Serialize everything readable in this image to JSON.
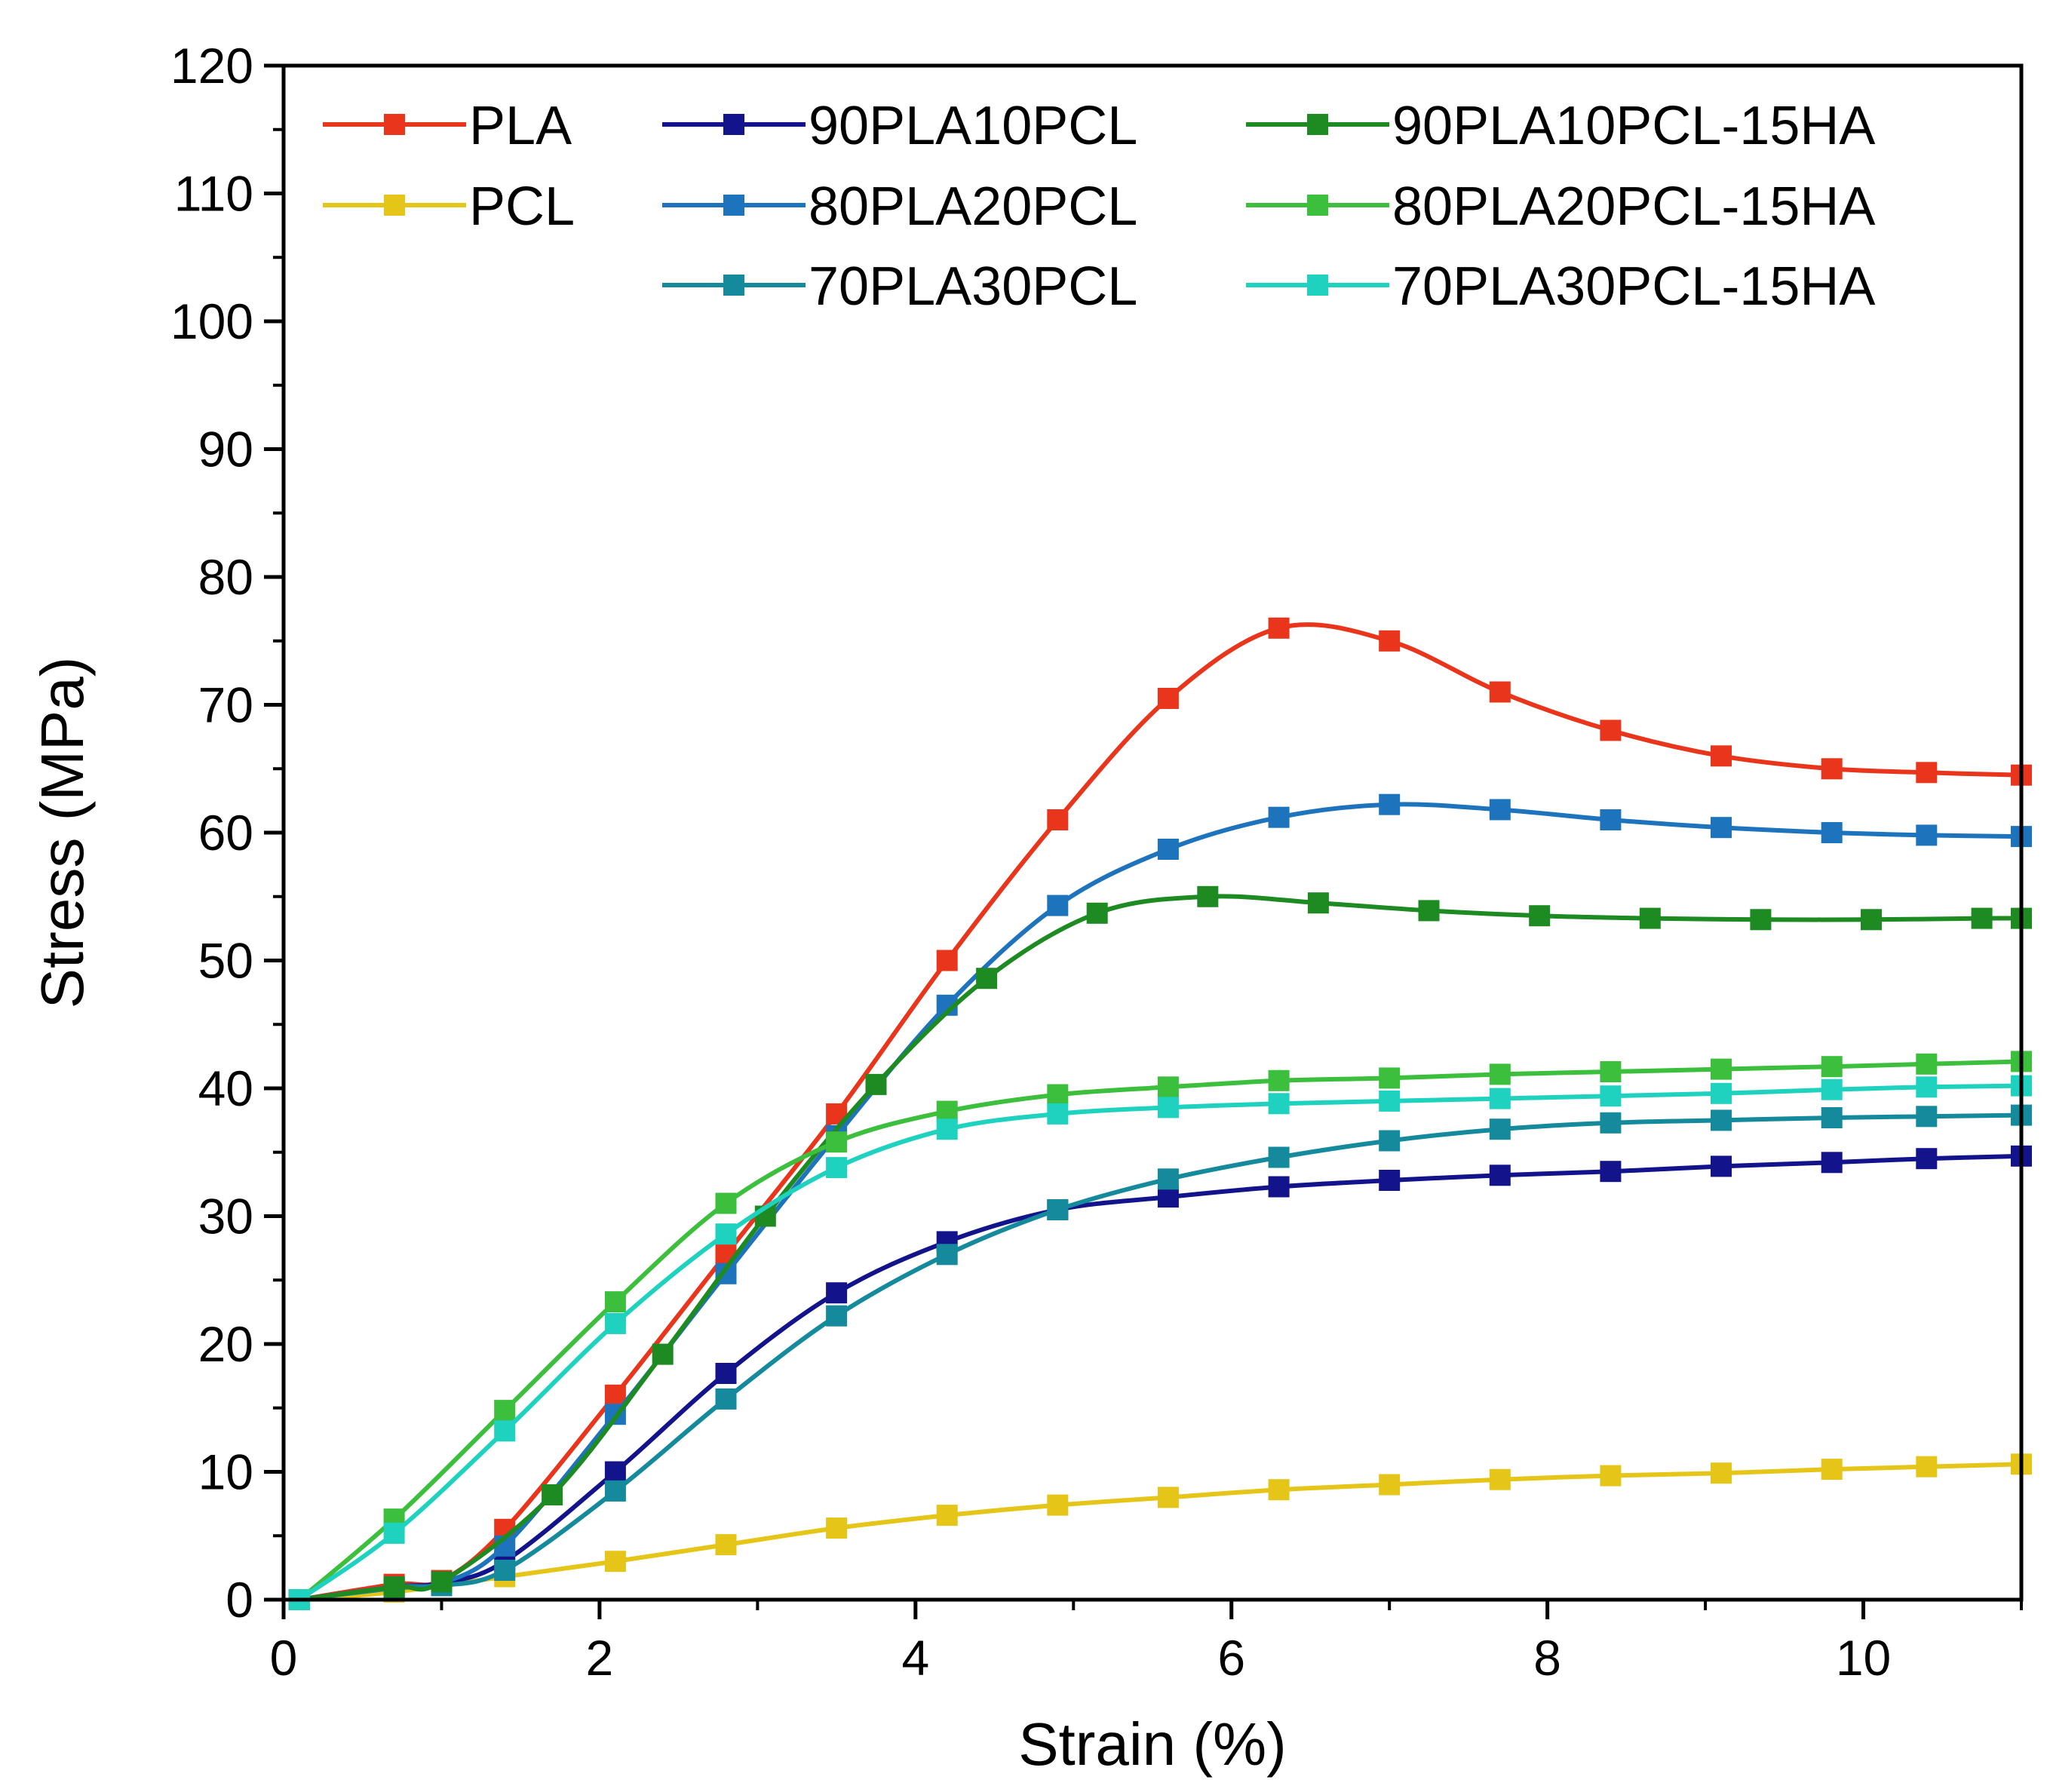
{
  "chart_data": {
    "type": "line",
    "title": "",
    "xlabel": "Strain (%)",
    "ylabel": "Stress (MPa)",
    "xlim": [
      0,
      11
    ],
    "ylim": [
      0,
      120
    ],
    "xticks": [
      0,
      2,
      4,
      6,
      8,
      10
    ],
    "yticks": [
      0,
      10,
      20,
      30,
      40,
      50,
      60,
      70,
      80,
      90,
      100,
      110,
      120
    ],
    "grid": false,
    "legend_position": "top-left",
    "series": [
      {
        "name": "PLA",
        "color": "#e8351b",
        "x": [
          0.1,
          0.7,
          1.0,
          1.4,
          2.1,
          2.8,
          3.5,
          4.2,
          4.9,
          5.6,
          6.3,
          7.0,
          7.7,
          8.4,
          9.1,
          9.8,
          10.4,
          11.0
        ],
        "y": [
          0,
          1.2,
          1.5,
          5.5,
          16,
          27,
          38,
          50,
          61,
          70.5,
          76,
          75,
          71,
          68,
          66,
          65,
          64.7,
          64.5
        ]
      },
      {
        "name": "PCL",
        "color": "#e6c519",
        "x": [
          0.1,
          0.7,
          1.4,
          2.1,
          2.8,
          3.5,
          4.2,
          4.9,
          5.6,
          6.3,
          7.0,
          7.7,
          8.4,
          9.1,
          9.8,
          10.4,
          11.0
        ],
        "y": [
          0,
          0.6,
          1.8,
          3.0,
          4.3,
          5.6,
          6.6,
          7.4,
          8.0,
          8.6,
          9.0,
          9.4,
          9.7,
          9.9,
          10.2,
          10.4,
          10.6
        ]
      },
      {
        "name": "90PLA10PCL",
        "color": "#13148c",
        "x": [
          0.1,
          0.7,
          1.0,
          1.4,
          2.1,
          2.8,
          3.5,
          4.2,
          4.9,
          5.6,
          6.3,
          7.0,
          7.7,
          8.4,
          9.1,
          9.8,
          10.4,
          11.0
        ],
        "y": [
          0,
          1.0,
          1.3,
          3.0,
          10,
          17.7,
          24,
          28,
          30.5,
          31.5,
          32.3,
          32.8,
          33.2,
          33.5,
          33.9,
          34.2,
          34.5,
          34.7
        ]
      },
      {
        "name": "80PLA20PCL",
        "color": "#1e74bc",
        "x": [
          0.1,
          0.7,
          1.0,
          1.4,
          2.1,
          2.8,
          3.5,
          4.2,
          4.9,
          5.6,
          6.3,
          7.0,
          7.7,
          8.4,
          9.1,
          9.8,
          10.4,
          11.0
        ],
        "y": [
          0,
          1.0,
          1.3,
          4.2,
          14.5,
          25.5,
          36.3,
          46.5,
          54.3,
          58.7,
          61.2,
          62.2,
          61.8,
          61,
          60.4,
          60,
          59.8,
          59.7
        ]
      },
      {
        "name": "70PLA30PCL",
        "color": "#148a9c",
        "x": [
          0.1,
          0.7,
          1.0,
          1.4,
          2.1,
          2.8,
          3.5,
          4.2,
          4.9,
          5.6,
          6.3,
          7.0,
          7.7,
          8.4,
          9.1,
          9.8,
          10.4,
          11.0
        ],
        "y": [
          0,
          0.9,
          1.1,
          2.3,
          8.5,
          15.7,
          22.2,
          27,
          30.5,
          32.9,
          34.6,
          35.9,
          36.8,
          37.3,
          37.5,
          37.7,
          37.8,
          37.9
        ]
      },
      {
        "name": "90PLA10PCL-15HA",
        "color": "#1d8a22",
        "x": [
          0.1,
          0.7,
          1.0,
          1.7,
          2.4,
          3.05,
          3.75,
          4.45,
          5.15,
          5.85,
          6.55,
          7.25,
          7.95,
          8.65,
          9.35,
          10.05,
          10.75,
          11.0
        ],
        "y": [
          0,
          1.0,
          1.4,
          8.2,
          19.2,
          30,
          40.3,
          48.6,
          53.7,
          55,
          54.5,
          53.9,
          53.5,
          53.3,
          53.2,
          53.2,
          53.3,
          53.3
        ]
      },
      {
        "name": "80PLA20PCL-15HA",
        "color": "#3cbf3c",
        "x": [
          0.1,
          0.7,
          1.4,
          2.1,
          2.8,
          3.5,
          4.2,
          4.9,
          5.6,
          6.3,
          7.0,
          7.7,
          8.4,
          9.1,
          9.8,
          10.4,
          11.0
        ],
        "y": [
          0,
          6.3,
          14.8,
          23.3,
          31,
          35.8,
          38.2,
          39.5,
          40.1,
          40.6,
          40.8,
          41.1,
          41.3,
          41.5,
          41.7,
          41.9,
          42.1
        ]
      },
      {
        "name": "70PLA30PCL-15HA",
        "color": "#1fd2c0",
        "x": [
          0.1,
          0.7,
          1.4,
          2.1,
          2.8,
          3.5,
          4.2,
          4.9,
          5.6,
          6.3,
          7.0,
          7.7,
          8.4,
          9.1,
          9.8,
          10.4,
          11.0
        ],
        "y": [
          0,
          5.2,
          13.2,
          21.6,
          28.6,
          33.8,
          36.8,
          38,
          38.5,
          38.8,
          39,
          39.2,
          39.4,
          39.6,
          39.9,
          40.1,
          40.2
        ]
      }
    ]
  }
}
